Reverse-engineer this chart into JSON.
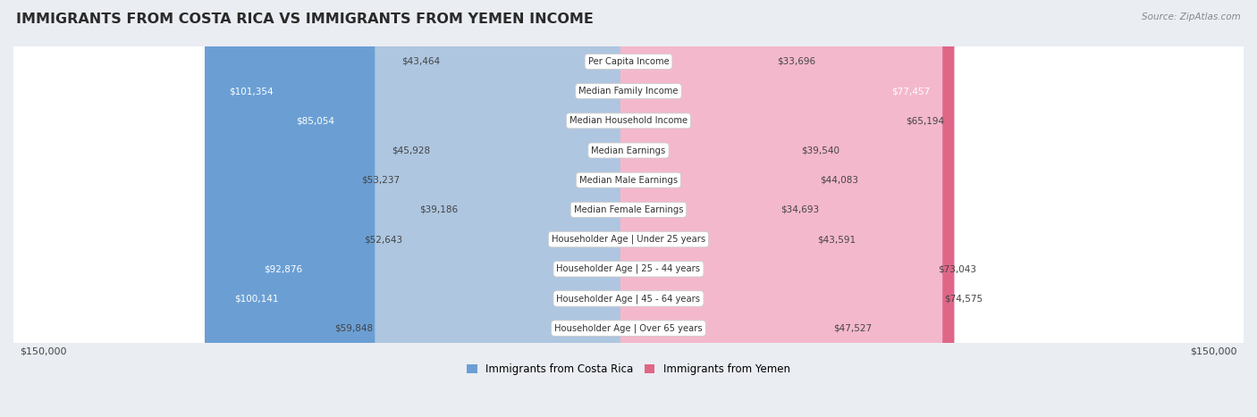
{
  "title": "IMMIGRANTS FROM COSTA RICA VS IMMIGRANTS FROM YEMEN INCOME",
  "source": "Source: ZipAtlas.com",
  "categories": [
    "Per Capita Income",
    "Median Family Income",
    "Median Household Income",
    "Median Earnings",
    "Median Male Earnings",
    "Median Female Earnings",
    "Householder Age | Under 25 years",
    "Householder Age | 25 - 44 years",
    "Householder Age | 45 - 64 years",
    "Householder Age | Over 65 years"
  ],
  "costa_rica_values": [
    43464,
    101354,
    85054,
    45928,
    53237,
    39186,
    52643,
    92876,
    100141,
    59848
  ],
  "yemen_values": [
    33696,
    77457,
    65194,
    39540,
    44083,
    34693,
    43591,
    73043,
    74575,
    47527
  ],
  "costa_rica_labels": [
    "$43,464",
    "$101,354",
    "$85,054",
    "$45,928",
    "$53,237",
    "$39,186",
    "$52,643",
    "$92,876",
    "$100,141",
    "$59,848"
  ],
  "yemen_labels": [
    "$33,696",
    "$77,457",
    "$65,194",
    "$39,540",
    "$44,083",
    "$34,693",
    "$43,591",
    "$73,043",
    "$74,575",
    "$47,527"
  ],
  "max_value": 150000,
  "costa_rica_color_light": "#aec6e0",
  "costa_rica_color_dark": "#6b9fd4",
  "yemen_color_light": "#f4b8cc",
  "yemen_color_dark": "#e06688",
  "legend_cr": "Immigrants from Costa Rica",
  "legend_ye": "Immigrants from Yemen",
  "axis_label_left": "$150,000",
  "axis_label_right": "$150,000",
  "dark_threshold": 75000,
  "row_colors": [
    "#f7f8fa",
    "#f0f2f5"
  ],
  "row_edge_color": "#d8dce2",
  "bg_color": "#eaedf2"
}
